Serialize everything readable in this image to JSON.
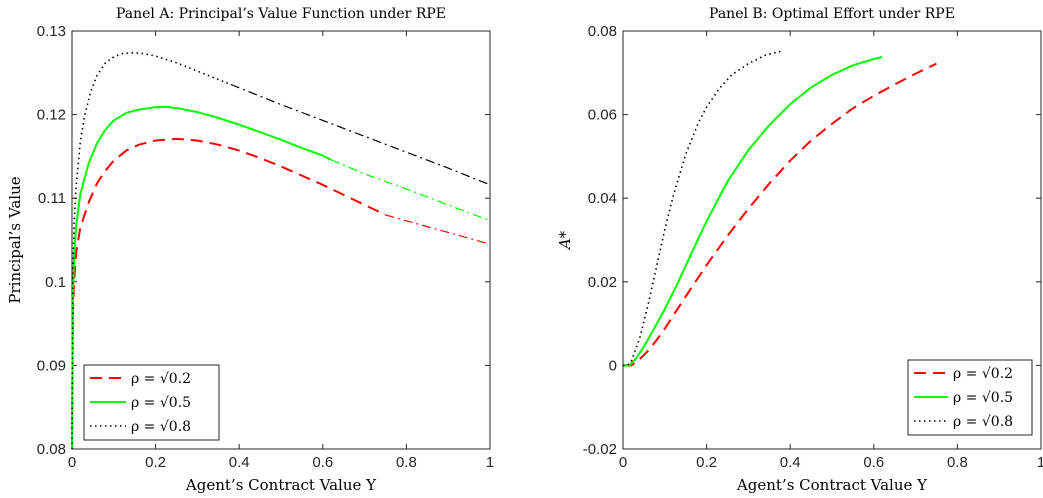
{
  "chart_data": [
    {
      "type": "line",
      "title": "Panel A: Principal’s Value Function under RPE",
      "xlabel": "Agent’s Contract Value Y",
      "ylabel": "Principal’s Value",
      "xlim": [
        0,
        1
      ],
      "ylim": [
        0.08,
        0.13
      ],
      "xticks": [
        "0",
        "0.2",
        "0.4",
        "0.6",
        "0.8",
        "1"
      ],
      "yticks": [
        "0.08",
        "0.09",
        "0.1",
        "0.11",
        "0.12",
        "0.13"
      ],
      "grid": false,
      "legend_position": "bottom-left",
      "series": [
        {
          "name": "ρ = √0.2",
          "color": "#ff0000",
          "style": "dashed",
          "x": [
            0,
            0.002,
            0.005,
            0.01,
            0.02,
            0.04,
            0.06,
            0.08,
            0.1,
            0.13,
            0.16,
            0.2,
            0.25,
            0.3,
            0.35,
            0.4,
            0.45,
            0.5,
            0.55,
            0.6,
            0.65,
            0.7,
            0.75
          ],
          "y": [
            0.08,
            0.096,
            0.1,
            0.1035,
            0.1065,
            0.1095,
            0.1118,
            0.1133,
            0.1145,
            0.1157,
            0.1164,
            0.1169,
            0.1171,
            0.1169,
            0.1164,
            0.1157,
            0.1148,
            0.1138,
            0.1127,
            0.1116,
            0.1104,
            0.1092,
            0.108
          ]
        },
        {
          "name": "",
          "color": "#ff0000",
          "style": "dashdot",
          "x": [
            0.75,
            0.8,
            0.85,
            0.9,
            0.95,
            1.0
          ],
          "y": [
            0.108,
            0.1073,
            0.1066,
            0.1059,
            0.1052,
            0.1045
          ]
        },
        {
          "name": "ρ = √0.5",
          "color": "#00ff00",
          "style": "solid",
          "x": [
            0,
            0.002,
            0.005,
            0.01,
            0.02,
            0.04,
            0.06,
            0.08,
            0.1,
            0.13,
            0.16,
            0.2,
            0.23,
            0.26,
            0.3,
            0.35,
            0.4,
            0.45,
            0.5,
            0.55,
            0.6,
            0.62
          ],
          "y": [
            0.08,
            0.098,
            0.103,
            0.1068,
            0.1105,
            0.1142,
            0.1166,
            0.1182,
            0.1193,
            0.1202,
            0.1206,
            0.1209,
            0.1209,
            0.1207,
            0.1203,
            0.1196,
            0.1188,
            0.1179,
            0.117,
            0.116,
            0.1151,
            0.1146
          ]
        },
        {
          "name": "",
          "color": "#00ff00",
          "style": "dashdot",
          "x": [
            0.62,
            0.7,
            0.8,
            0.9,
            1.0
          ],
          "y": [
            0.1146,
            0.1129,
            0.1111,
            0.1092,
            0.1073
          ]
        },
        {
          "name": "ρ = √0.8",
          "color": "#000000",
          "style": "dotted",
          "x": [
            0,
            0.002,
            0.005,
            0.01,
            0.02,
            0.03,
            0.045,
            0.06,
            0.08,
            0.1,
            0.12,
            0.15,
            0.17,
            0.2,
            0.25,
            0.3,
            0.35,
            0.38
          ],
          "y": [
            0.08,
            0.101,
            0.107,
            0.1115,
            0.1168,
            0.1198,
            0.1228,
            0.1247,
            0.1262,
            0.1269,
            0.1273,
            0.1274,
            0.1273,
            0.127,
            0.1262,
            0.1252,
            0.1242,
            0.1236
          ]
        },
        {
          "name": "",
          "color": "#000000",
          "style": "dashdot",
          "x": [
            0.38,
            0.5,
            0.6,
            0.7,
            0.8,
            0.9,
            1.0
          ],
          "y": [
            0.1236,
            0.1212,
            0.1193,
            0.1174,
            0.1155,
            0.1136,
            0.1116
          ]
        }
      ],
      "legend": [
        {
          "label": "ρ = √0.2",
          "color": "#ff0000",
          "style": "dashed"
        },
        {
          "label": "ρ = √0.5",
          "color": "#00ff00",
          "style": "solid"
        },
        {
          "label": "ρ = √0.8",
          "color": "#000000",
          "style": "dotted"
        }
      ]
    },
    {
      "type": "line",
      "title": "Panel B: Optimal Effort under RPE",
      "xlabel": "Agent’s Contract Value Y",
      "ylabel": "A*",
      "xlim": [
        0,
        1
      ],
      "ylim": [
        -0.02,
        0.08
      ],
      "xticks": [
        "0",
        "0.2",
        "0.4",
        "0.6",
        "0.8",
        "1"
      ],
      "yticks": [
        "-0.02",
        "0",
        "0.02",
        "0.04",
        "0.06",
        "0.08"
      ],
      "grid": false,
      "legend_position": "bottom-right",
      "series": [
        {
          "name": "ρ = √0.2",
          "color": "#ff0000",
          "style": "dashed",
          "x": [
            0,
            0.02,
            0.04,
            0.06,
            0.08,
            0.1,
            0.15,
            0.2,
            0.25,
            0.3,
            0.35,
            0.4,
            0.45,
            0.5,
            0.55,
            0.6,
            0.65,
            0.7,
            0.75
          ],
          "y": [
            0,
            0,
            0.0015,
            0.0035,
            0.006,
            0.0088,
            0.0165,
            0.024,
            0.031,
            0.0375,
            0.0435,
            0.049,
            0.0538,
            0.0578,
            0.0615,
            0.0645,
            0.0672,
            0.0698,
            0.0722
          ]
        },
        {
          "name": "ρ = √0.5",
          "color": "#00ff00",
          "style": "solid",
          "x": [
            0,
            0.015,
            0.03,
            0.05,
            0.07,
            0.1,
            0.13,
            0.16,
            0.2,
            0.25,
            0.3,
            0.35,
            0.4,
            0.45,
            0.5,
            0.55,
            0.6,
            0.62
          ],
          "y": [
            0,
            0,
            0.0015,
            0.0045,
            0.008,
            0.0135,
            0.0195,
            0.026,
            0.0345,
            0.044,
            0.0515,
            0.0575,
            0.0625,
            0.0665,
            0.0695,
            0.0718,
            0.0733,
            0.0738
          ]
        },
        {
          "name": "ρ = √0.8",
          "color": "#000000",
          "style": "dotted",
          "x": [
            0,
            0.01,
            0.02,
            0.04,
            0.06,
            0.08,
            0.1,
            0.12,
            0.15,
            0.18,
            0.2,
            0.23,
            0.26,
            0.3,
            0.34,
            0.38
          ],
          "y": [
            0,
            0,
            0.001,
            0.0065,
            0.0145,
            0.0235,
            0.0325,
            0.0405,
            0.0505,
            0.058,
            0.0618,
            0.0662,
            0.0695,
            0.0722,
            0.0742,
            0.0752
          ]
        }
      ],
      "legend": [
        {
          "label": "ρ = √0.2",
          "color": "#ff0000",
          "style": "dashed"
        },
        {
          "label": "ρ = √0.5",
          "color": "#00ff00",
          "style": "solid"
        },
        {
          "label": "ρ = √0.8",
          "color": "#000000",
          "style": "dotted"
        }
      ]
    }
  ]
}
